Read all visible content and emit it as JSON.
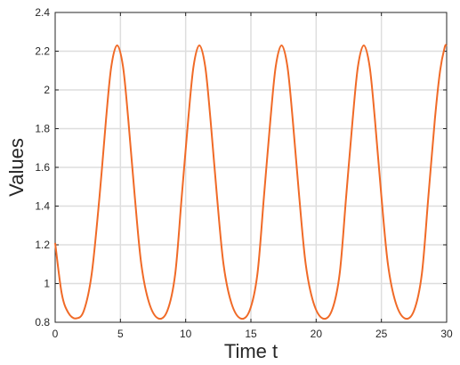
{
  "chart_data": {
    "type": "line",
    "title": "",
    "xlabel": "Time t",
    "ylabel": "Values",
    "xlim": [
      0,
      30
    ],
    "ylim": [
      0.8,
      2.4
    ],
    "xticks": [
      0,
      5,
      10,
      15,
      20,
      25,
      30
    ],
    "xtick_labels": [
      "0",
      "5",
      "10",
      "15",
      "20",
      "25",
      "30"
    ],
    "yticks": [
      0.8,
      1.0,
      1.2,
      1.4,
      1.6,
      1.8,
      2.0,
      2.2,
      2.4
    ],
    "ytick_labels": [
      "0.8",
      "1",
      "1.2",
      "1.4",
      "1.6",
      "1.8",
      "2",
      "2.2",
      "2.4"
    ],
    "grid": true,
    "legend": "none",
    "series": [
      {
        "color": "#f06a27",
        "x": [
          0,
          0.5,
          1.0,
          1.6,
          2.2,
          2.8,
          3.4,
          3.9,
          4.3,
          4.75,
          5.2,
          5.6,
          6.1,
          6.6,
          7.2,
          7.9,
          8.6,
          9.2,
          9.7,
          10.2,
          10.6,
          11.05,
          11.5,
          11.9,
          12.4,
          12.9,
          13.5,
          14.2,
          14.9,
          15.5,
          16.0,
          16.5,
          16.9,
          17.35,
          17.8,
          18.2,
          18.7,
          19.2,
          19.8,
          20.5,
          21.2,
          21.8,
          22.3,
          22.8,
          23.2,
          23.65,
          24.1,
          24.5,
          25.0,
          25.5,
          26.1,
          26.8,
          27.5,
          28.1,
          28.6,
          29.1,
          29.5,
          29.85,
          30.0
        ],
        "y": [
          1.21,
          0.95,
          0.85,
          0.82,
          0.86,
          1.05,
          1.45,
          1.85,
          2.12,
          2.23,
          2.12,
          1.85,
          1.45,
          1.1,
          0.9,
          0.82,
          0.86,
          1.05,
          1.45,
          1.85,
          2.12,
          2.23,
          2.12,
          1.85,
          1.45,
          1.1,
          0.9,
          0.82,
          0.86,
          1.05,
          1.45,
          1.85,
          2.12,
          2.23,
          2.12,
          1.85,
          1.45,
          1.1,
          0.9,
          0.82,
          0.86,
          1.05,
          1.45,
          1.85,
          2.12,
          2.23,
          2.12,
          1.85,
          1.45,
          1.1,
          0.9,
          0.82,
          0.86,
          1.05,
          1.45,
          1.85,
          2.1,
          2.22,
          2.23
        ]
      }
    ]
  }
}
